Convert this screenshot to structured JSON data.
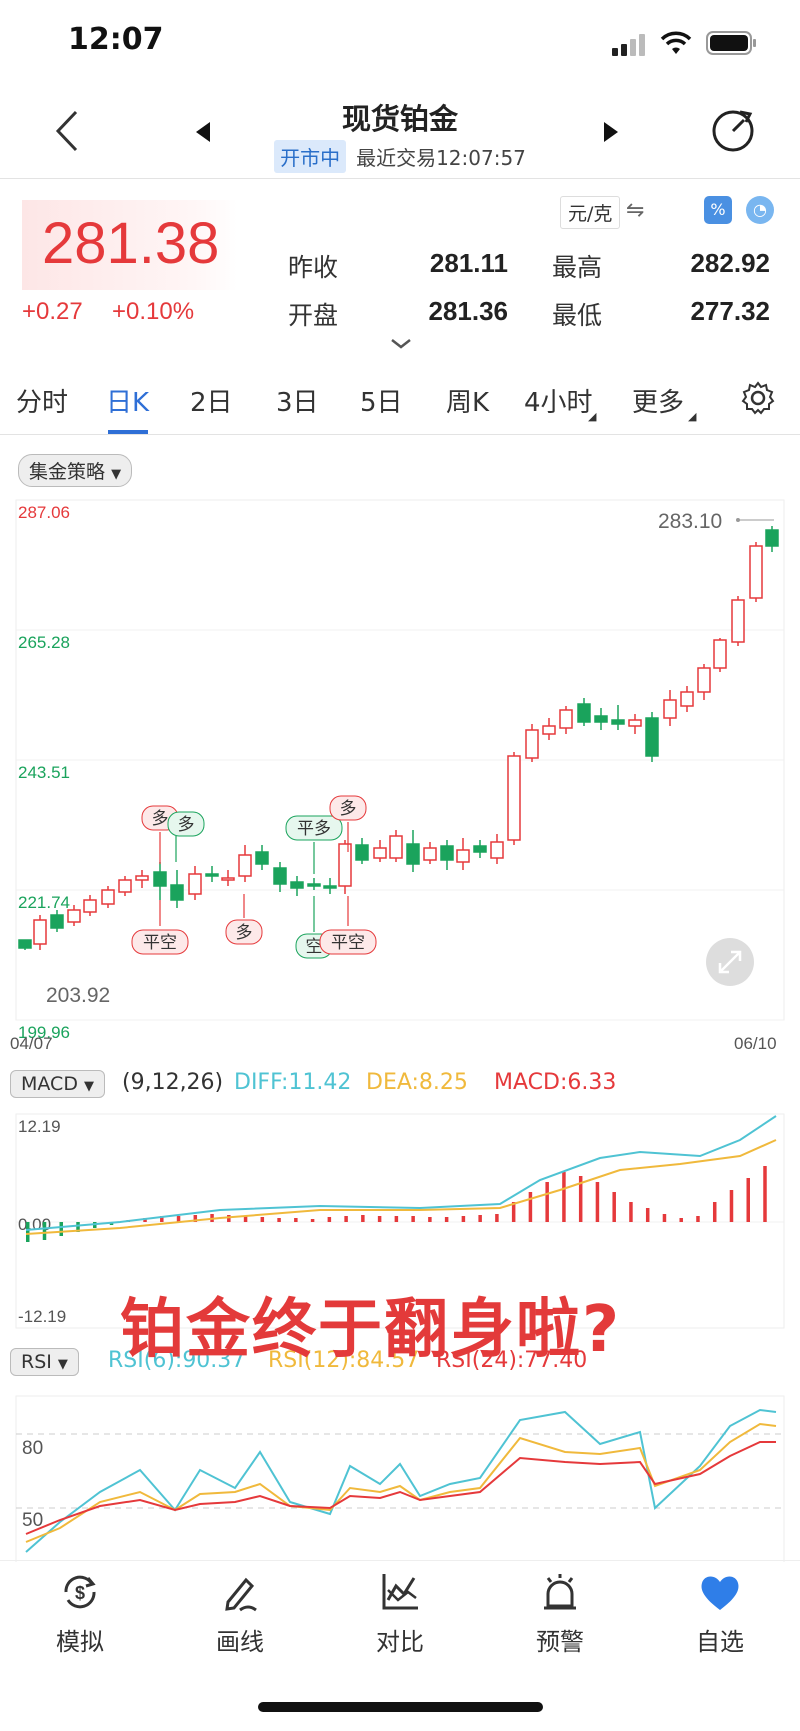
{
  "status_bar": {
    "time": "12:07"
  },
  "nav": {
    "title": "现货铂金",
    "status_badge": "开市中",
    "last_trade": "最近交易12:07:57"
  },
  "quote": {
    "price": "281.38",
    "change": "+0.27",
    "change_pct": "+0.10%",
    "unit": "元/克",
    "prev_close_label": "昨收",
    "prev_close": "281.11",
    "high_label": "最高",
    "high": "282.92",
    "open_label": "开盘",
    "open": "281.36",
    "low_label": "最低",
    "low": "277.32"
  },
  "tabs": [
    "分时",
    "日K",
    "2日",
    "3日",
    "5日",
    "周K",
    "4小时",
    "更多"
  ],
  "active_tab": "日K",
  "strategy_pill": "集金策略",
  "kline": {
    "y_labels": [
      "287.06",
      "265.28",
      "243.51",
      "221.74",
      "199.96"
    ],
    "max_label": "283.10",
    "min_label": "203.92",
    "date_start": "04/07",
    "date_end": "06/10",
    "signals": [
      "多",
      "多",
      "平空",
      "多",
      "平多",
      "空",
      "多",
      "平空"
    ]
  },
  "macd": {
    "pill": "MACD",
    "params": "(9,12,26)",
    "diff": "DIFF:11.42",
    "dea": "DEA:8.25",
    "macd": "MACD:6.33",
    "y_top": "12.19",
    "y_mid": "0.00",
    "y_bot": "-12.19"
  },
  "rsi": {
    "pill": "RSI",
    "rsi6": "RSI(6):90.37",
    "rsi12": "RSI(12):84.57",
    "rsi24": "RSI(24):77.40",
    "level_high": "80",
    "level_low": "50"
  },
  "overlay_text": "铂金终于翻身啦?",
  "bottom_tabs": [
    {
      "label": "模拟",
      "icon": "dollar-refresh-icon"
    },
    {
      "label": "画线",
      "icon": "pen-icon"
    },
    {
      "label": "对比",
      "icon": "compare-chart-icon"
    },
    {
      "label": "预警",
      "icon": "alarm-bell-icon"
    },
    {
      "label": "自选",
      "icon": "heart-icon"
    }
  ],
  "colors": {
    "up": "#e5393b",
    "down": "#1aa35c",
    "accent": "#2f6fd6",
    "diff": "#4fc3d3",
    "dea": "#f0b93c"
  }
}
